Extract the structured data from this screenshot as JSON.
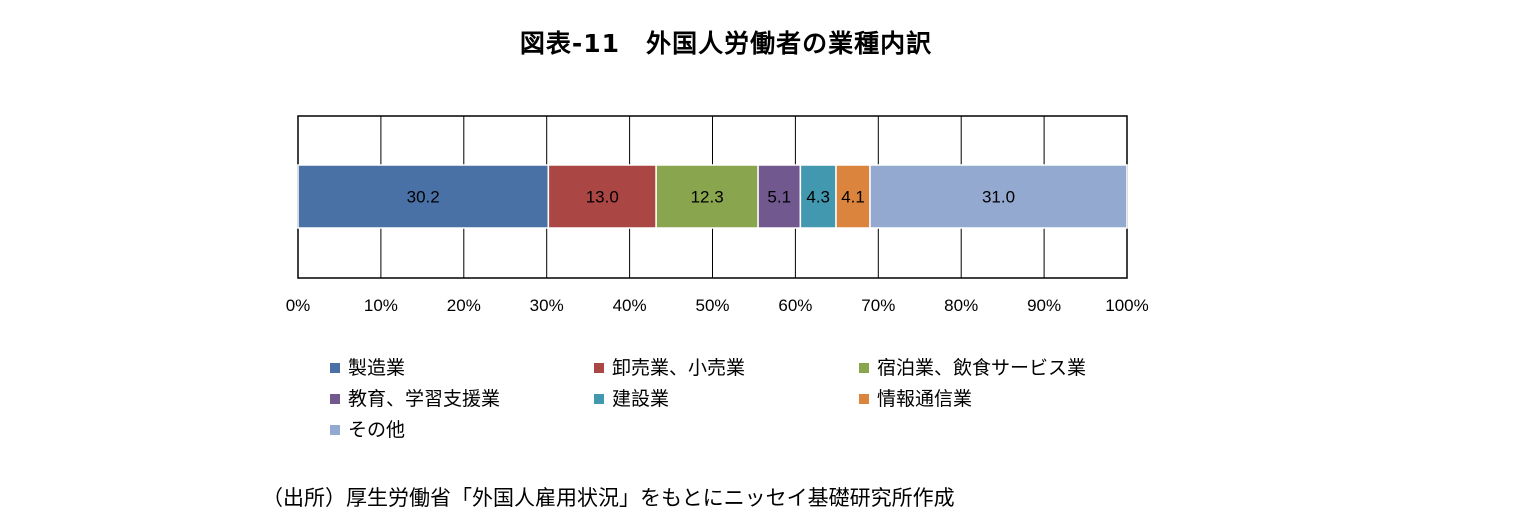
{
  "title": "図表-11　外国人労働者の業種内訳",
  "chart_data": {
    "type": "bar",
    "orientation": "horizontal",
    "stacked": true,
    "percent_stacked": true,
    "categories": [
      ""
    ],
    "series": [
      {
        "name": "製造業",
        "values": [
          30.2
        ],
        "label": "30.2",
        "color": "#4a71a6"
      },
      {
        "name": "卸売業、小売業",
        "values": [
          13.0
        ],
        "label": "13.0",
        "color": "#aa4644"
      },
      {
        "name": "宿泊業、飲食サービス業",
        "values": [
          12.3
        ],
        "label": "12.3",
        "color": "#89a54e"
      },
      {
        "name": "教育、学習支援業",
        "values": [
          5.1
        ],
        "label": "5.1",
        "color": "#71588f"
      },
      {
        "name": "建設業",
        "values": [
          4.3
        ],
        "label": "4.3",
        "color": "#4198af"
      },
      {
        "name": "情報通信業",
        "values": [
          4.1
        ],
        "label": "4.1",
        "color": "#db843d"
      },
      {
        "name": "その他",
        "values": [
          31.0
        ],
        "label": "31.0",
        "color": "#94a9cf"
      }
    ],
    "xlim": [
      0,
      100
    ],
    "xticks": [
      "0%",
      "10%",
      "20%",
      "30%",
      "40%",
      "50%",
      "60%",
      "70%",
      "80%",
      "90%",
      "100%"
    ],
    "grid": true,
    "legend_position": "bottom"
  },
  "source": "（出所）厚生労働省「外国人雇用状況」をもとにニッセイ基礎研究所作成"
}
